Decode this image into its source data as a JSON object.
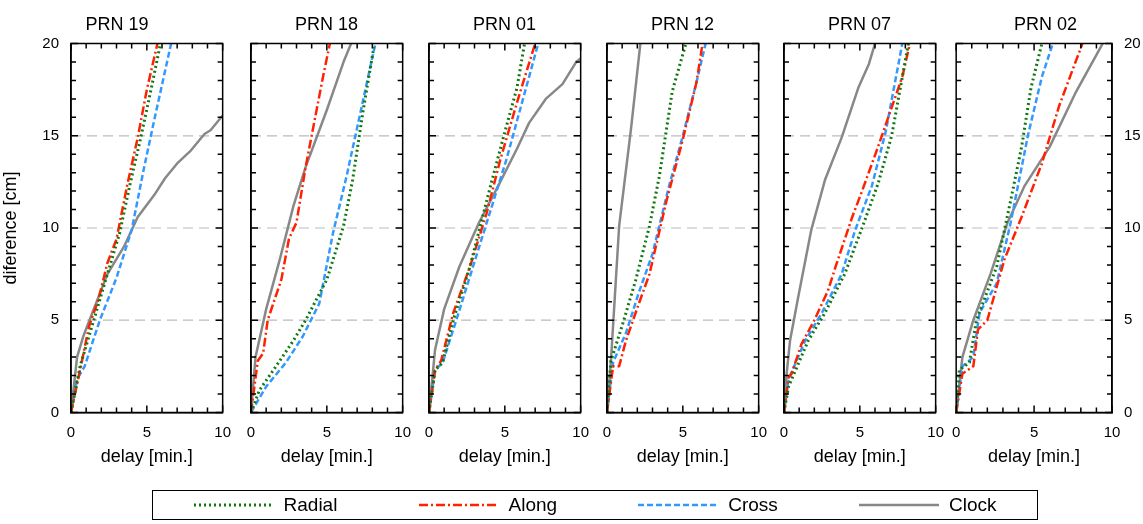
{
  "chart_data": [
    {
      "type": "line",
      "title": "PRN 19",
      "xlabel": "delay [min.]",
      "ylabel": "diference [cm]",
      "legend": "bottom",
      "grid": "y",
      "xlim": [
        0,
        10
      ],
      "xticks": [
        0,
        {
          "value": 1,
          "label": null
        },
        {
          "value": 2,
          "label": null
        },
        {
          "value": 3,
          "label": null
        },
        {
          "value": 4,
          "label": null
        },
        5,
        {
          "value": 6,
          "label": null
        },
        {
          "value": 7,
          "label": null
        },
        {
          "value": 8,
          "label": null
        },
        {
          "value": 9,
          "label": null
        },
        10
      ],
      "ylim": [
        0,
        20
      ],
      "yticks": [
        0,
        {
          "value": 1,
          "label": null
        },
        {
          "value": 2,
          "label": null
        },
        {
          "value": 3,
          "label": null
        },
        {
          "value": 4,
          "label": null
        },
        5,
        {
          "value": 6,
          "label": null
        },
        {
          "value": 7,
          "label": null
        },
        {
          "value": 8,
          "label": null
        },
        {
          "value": 9,
          "label": null
        },
        10,
        {
          "value": 11,
          "label": null
        },
        {
          "value": 12,
          "label": null
        },
        {
          "value": 13,
          "label": null
        },
        {
          "value": 14,
          "label": null
        },
        15,
        {
          "value": 16,
          "label": null
        },
        {
          "value": 17,
          "label": null
        },
        {
          "value": 18,
          "label": null
        },
        {
          "value": 19,
          "label": null
        },
        20
      ],
      "series": [
        {
          "name": "Radial",
          "color": "#117711",
          "line_style": "dotted",
          "x": [
            0,
            0.6,
            1.5,
            2.4,
            3.2,
            3.9,
            4.6,
            5.3,
            5.9
          ],
          "values": [
            0,
            2.5,
            5,
            7.5,
            9.7,
            12.4,
            14.9,
            17.6,
            20
          ]
        },
        {
          "name": "Along",
          "color": "#ff2200",
          "line_style": "dashdot",
          "x": [
            0,
            0.7,
            1.2,
            1.8,
            2.4,
            3.0,
            3.7,
            4.4,
            5.0,
            5.7
          ],
          "values": [
            0,
            2.7,
            4.7,
            6.1,
            8.1,
            9.4,
            12.3,
            14.9,
            17.5,
            20
          ]
        },
        {
          "name": "Cross",
          "color": "#3399ff",
          "line_style": "dashed",
          "x": [
            0,
            0.4,
            0.9,
            1.9,
            3.0,
            4.0,
            4.8,
            5.5,
            6.6
          ],
          "values": [
            0,
            1.8,
            2.5,
            5,
            7.3,
            9.9,
            13.2,
            15.9,
            20
          ]
        },
        {
          "name": "Clock",
          "color": "#888888",
          "line_style": "solid",
          "x": [
            0,
            0.4,
            0.8,
            1.5,
            2.4,
            3.5,
            4.4,
            5.5,
            6.2,
            7.0,
            7.9,
            8.8,
            9.2,
            10
          ],
          "values": [
            0,
            3.0,
            4.1,
            5.6,
            7.5,
            9,
            10.6,
            11.8,
            12.7,
            13.5,
            14.2,
            15.1,
            15.3,
            16.1
          ]
        }
      ]
    },
    {
      "type": "line",
      "title": "PRN 18",
      "xlabel": "delay [min.]",
      "grid": "y",
      "tick_labels": "x",
      "xlim": [
        0,
        10
      ],
      "xticks": [
        0,
        {
          "value": 1,
          "label": null
        },
        {
          "value": 2,
          "label": null
        },
        {
          "value": 3,
          "label": null
        },
        {
          "value": 4,
          "label": null
        },
        5,
        {
          "value": 6,
          "label": null
        },
        {
          "value": 7,
          "label": null
        },
        {
          "value": 8,
          "label": null
        },
        {
          "value": 9,
          "label": null
        },
        10
      ],
      "ylim": [
        0,
        20
      ],
      "yticks": [
        0,
        {
          "value": 1,
          "label": null
        },
        {
          "value": 2,
          "label": null
        },
        {
          "value": 3,
          "label": null
        },
        {
          "value": 4,
          "label": null
        },
        5,
        {
          "value": 6,
          "label": null
        },
        {
          "value": 7,
          "label": null
        },
        {
          "value": 8,
          "label": null
        },
        {
          "value": 9,
          "label": null
        },
        10,
        {
          "value": 11,
          "label": null
        },
        {
          "value": 12,
          "label": null
        },
        {
          "value": 13,
          "label": null
        },
        {
          "value": 14,
          "label": null
        },
        15,
        {
          "value": 16,
          "label": null
        },
        {
          "value": 17,
          "label": null
        },
        {
          "value": 18,
          "label": null
        },
        {
          "value": 19,
          "label": null
        },
        20
      ],
      "series": [
        {
          "color": "#117711",
          "line_style": "dotted",
          "x": [
            0,
            0.55,
            1.65,
            2.8,
            3.6,
            5.0,
            6.1,
            6.7,
            7.4,
            8.1
          ],
          "values": [
            0,
            1.2,
            2.5,
            3.9,
            5,
            7.2,
            10.1,
            12.6,
            16.4,
            19.8
          ]
        },
        {
          "color": "#ff2200",
          "line_style": "dashdot",
          "x": [
            0,
            0.45,
            0.8,
            1.1,
            2.0,
            2.5,
            3.0,
            3.6,
            4.7,
            5.2
          ],
          "values": [
            0,
            2.8,
            3.2,
            5,
            7.2,
            9.4,
            10.3,
            13.3,
            18,
            20
          ]
        },
        {
          "color": "#3399ff",
          "line_style": "dashed",
          "x": [
            0,
            1.0,
            2.3,
            3.4,
            4.5,
            5.4,
            6.3,
            7.2,
            8.2
          ],
          "values": [
            0,
            1.4,
            2.7,
            4.1,
            5.9,
            9.7,
            12.8,
            16.2,
            20
          ]
        },
        {
          "color": "#888888",
          "line_style": "solid",
          "x": [
            0,
            0.3,
            1.0,
            1.9,
            2.8,
            3.6,
            5.0,
            6.1,
            6.6
          ],
          "values": [
            0,
            3,
            5.6,
            8.3,
            11.2,
            13.3,
            16.4,
            19,
            20
          ]
        }
      ]
    },
    {
      "type": "line",
      "title": "PRN 01",
      "xlabel": "delay [min.]",
      "grid": "y",
      "tick_labels": "x",
      "xlim": [
        0,
        10
      ],
      "xticks": [
        0,
        {
          "value": 1,
          "label": null
        },
        {
          "value": 2,
          "label": null
        },
        {
          "value": 3,
          "label": null
        },
        {
          "value": 4,
          "label": null
        },
        5,
        {
          "value": 6,
          "label": null
        },
        {
          "value": 7,
          "label": null
        },
        {
          "value": 8,
          "label": null
        },
        {
          "value": 9,
          "label": null
        },
        10
      ],
      "ylim": [
        0,
        20
      ],
      "yticks": [
        0,
        {
          "value": 1,
          "label": null
        },
        {
          "value": 2,
          "label": null
        },
        {
          "value": 3,
          "label": null
        },
        {
          "value": 4,
          "label": null
        },
        5,
        {
          "value": 6,
          "label": null
        },
        {
          "value": 7,
          "label": null
        },
        {
          "value": 8,
          "label": null
        },
        {
          "value": 9,
          "label": null
        },
        10,
        {
          "value": 11,
          "label": null
        },
        {
          "value": 12,
          "label": null
        },
        {
          "value": 13,
          "label": null
        },
        {
          "value": 14,
          "label": null
        },
        15,
        {
          "value": 16,
          "label": null
        },
        {
          "value": 17,
          "label": null
        },
        {
          "value": 18,
          "label": null
        },
        {
          "value": 19,
          "label": null
        },
        20
      ],
      "series": [
        {
          "color": "#117711",
          "line_style": "dotted",
          "x": [
            0,
            0.4,
            0.9,
            1.6,
            2.7,
            4.0,
            4.9,
            5.8,
            6.3
          ],
          "values": [
            0,
            2.3,
            2.7,
            5,
            7.9,
            12.1,
            14.9,
            17.6,
            20
          ]
        },
        {
          "color": "#ff2200",
          "line_style": "dashdot",
          "x": [
            0,
            0.4,
            0.8,
            1.6,
            2.7,
            3.8,
            4.7,
            5.8,
            7.0
          ],
          "values": [
            0,
            2.3,
            2.8,
            5.4,
            7.9,
            10.8,
            13.7,
            16.8,
            20
          ]
        },
        {
          "color": "#3399ff",
          "line_style": "dashed",
          "x": [
            0,
            0.4,
            0.9,
            1.8,
            2.9,
            4.0,
            5.1,
            6.2,
            7.2
          ],
          "values": [
            0,
            2.3,
            2.7,
            5,
            7.9,
            10.8,
            13.7,
            17,
            20
          ]
        },
        {
          "color": "#888888",
          "line_style": "solid",
          "x": [
            0,
            0.4,
            1.0,
            2.0,
            3.3,
            4.7,
            5.8,
            6.6,
            7.7,
            8.8,
            9.7,
            10
          ],
          "values": [
            0,
            3.4,
            5.6,
            7.9,
            10.3,
            12.5,
            14.3,
            15.7,
            17,
            17.8,
            19,
            19.2
          ]
        }
      ]
    },
    {
      "type": "line",
      "title": "PRN 12",
      "xlabel": "delay [min.]",
      "grid": "y",
      "tick_labels": "x",
      "xlim": [
        0,
        10
      ],
      "xticks": [
        0,
        {
          "value": 1,
          "label": null
        },
        {
          "value": 2,
          "label": null
        },
        {
          "value": 3,
          "label": null
        },
        {
          "value": 4,
          "label": null
        },
        5,
        {
          "value": 6,
          "label": null
        },
        {
          "value": 7,
          "label": null
        },
        {
          "value": 8,
          "label": null
        },
        {
          "value": 9,
          "label": null
        },
        10
      ],
      "ylim": [
        0,
        20
      ],
      "yticks": [
        0,
        {
          "value": 1,
          "label": null
        },
        {
          "value": 2,
          "label": null
        },
        {
          "value": 3,
          "label": null
        },
        {
          "value": 4,
          "label": null
        },
        5,
        {
          "value": 6,
          "label": null
        },
        {
          "value": 7,
          "label": null
        },
        {
          "value": 8,
          "label": null
        },
        {
          "value": 9,
          "label": null
        },
        10,
        {
          "value": 11,
          "label": null
        },
        {
          "value": 12,
          "label": null
        },
        {
          "value": 13,
          "label": null
        },
        {
          "value": 14,
          "label": null
        },
        15,
        {
          "value": 16,
          "label": null
        },
        {
          "value": 17,
          "label": null
        },
        {
          "value": 18,
          "label": null
        },
        {
          "value": 19,
          "label": null
        },
        20
      ],
      "series": [
        {
          "color": "#117711",
          "line_style": "dotted",
          "x": [
            0,
            0.26,
            1.0,
            1.9,
            2.8,
            3.45,
            4.3,
            5.2
          ],
          "values": [
            0,
            2.8,
            4.7,
            7.2,
            10.1,
            12.8,
            17.4,
            20
          ]
        },
        {
          "color": "#ff2200",
          "line_style": "dashdot",
          "x": [
            0,
            0.4,
            0.8,
            1.25,
            2.1,
            2.8,
            3.9,
            5.0,
            5.9,
            6.3
          ],
          "values": [
            0,
            2.5,
            2.5,
            3.9,
            5.9,
            7.5,
            11.4,
            14.8,
            17.9,
            20
          ]
        },
        {
          "color": "#3399ff",
          "line_style": "dashed",
          "x": [
            0,
            0.4,
            1.25,
            2.1,
            3.0,
            4.1,
            5.0,
            5.9,
            6.5
          ],
          "values": [
            0,
            2.7,
            4.3,
            6.5,
            8.6,
            12.3,
            15,
            17.9,
            20
          ]
        },
        {
          "color": "#888888",
          "line_style": "solid",
          "x": [
            0,
            0.26,
            0.8,
            1.6,
            2.2
          ],
          "values": [
            0,
            2.8,
            10.1,
            15.5,
            20
          ]
        }
      ]
    },
    {
      "type": "line",
      "title": "PRN 07",
      "xlabel": "delay [min.]",
      "grid": "y",
      "tick_labels": "x",
      "xlim": [
        0,
        10
      ],
      "xticks": [
        0,
        {
          "value": 1,
          "label": null
        },
        {
          "value": 2,
          "label": null
        },
        {
          "value": 3,
          "label": null
        },
        {
          "value": 4,
          "label": null
        },
        5,
        {
          "value": 6,
          "label": null
        },
        {
          "value": 7,
          "label": null
        },
        {
          "value": 8,
          "label": null
        },
        {
          "value": 9,
          "label": null
        },
        10
      ],
      "ylim": [
        0,
        20
      ],
      "yticks": [
        0,
        {
          "value": 1,
          "label": null
        },
        {
          "value": 2,
          "label": null
        },
        {
          "value": 3,
          "label": null
        },
        {
          "value": 4,
          "label": null
        },
        5,
        {
          "value": 6,
          "label": null
        },
        {
          "value": 7,
          "label": null
        },
        {
          "value": 8,
          "label": null
        },
        {
          "value": 9,
          "label": null
        },
        10,
        {
          "value": 11,
          "label": null
        },
        {
          "value": 12,
          "label": null
        },
        {
          "value": 13,
          "label": null
        },
        {
          "value": 14,
          "label": null
        },
        15,
        {
          "value": 16,
          "label": null
        },
        {
          "value": 17,
          "label": null
        },
        {
          "value": 18,
          "label": null
        },
        {
          "value": 19,
          "label": null
        },
        20
      ],
      "series": [
        {
          "color": "#117711",
          "line_style": "dotted",
          "x": [
            0,
            0.3,
            1.6,
            2.7,
            4.0,
            5.1,
            6.2,
            7.1,
            8.2
          ],
          "values": [
            0,
            1.4,
            3.9,
            5.4,
            7.5,
            9.9,
            12.4,
            15,
            20
          ]
        },
        {
          "color": "#ff2200",
          "line_style": "dashdot",
          "x": [
            0,
            0.3,
            0.5,
            1.15,
            2.0,
            2.9,
            3.4,
            4.5,
            5.1,
            6.2,
            7.8,
            8.3
          ],
          "values": [
            0,
            1.9,
            2.1,
            3.7,
            5,
            6.6,
            7.9,
            10.6,
            11.9,
            14.4,
            18.2,
            20
          ]
        },
        {
          "color": "#3399ff",
          "line_style": "dashed",
          "x": [
            0,
            0.3,
            1.4,
            2.5,
            3.8,
            4.7,
            5.8,
            6.7,
            7.8
          ],
          "values": [
            0,
            1.8,
            3.9,
            5.4,
            7.5,
            9.9,
            12.3,
            15.2,
            20
          ]
        },
        {
          "color": "#888888",
          "line_style": "solid",
          "x": [
            0,
            0.15,
            0.4,
            0.9,
            1.8,
            2.7,
            3.8,
            4.9,
            5.6,
            6.0
          ],
          "values": [
            0,
            1.9,
            3.9,
            6.1,
            9.9,
            12.6,
            14.9,
            17.6,
            18.9,
            20
          ]
        }
      ]
    },
    {
      "type": "line",
      "title": "PRN 02",
      "xlabel": "delay [min.]",
      "grid": "y",
      "xlim": [
        0,
        10
      ],
      "xticks": [
        0,
        {
          "value": 1,
          "label": null
        },
        {
          "value": 2,
          "label": null
        },
        {
          "value": 3,
          "label": null
        },
        {
          "value": 4,
          "label": null
        },
        5,
        {
          "value": 6,
          "label": null
        },
        {
          "value": 7,
          "label": null
        },
        {
          "value": 8,
          "label": null
        },
        {
          "value": 9,
          "label": null
        },
        10
      ],
      "y2lim": [
        0,
        20
      ],
      "y2ticks": [
        0,
        {
          "value": 1,
          "label": null
        },
        {
          "value": 2,
          "label": null
        },
        {
          "value": 3,
          "label": null
        },
        {
          "value": 4,
          "label": null
        },
        5,
        {
          "value": 6,
          "label": null
        },
        {
          "value": 7,
          "label": null
        },
        {
          "value": 8,
          "label": null
        },
        {
          "value": 9,
          "label": null
        },
        10,
        {
          "value": 11,
          "label": null
        },
        {
          "value": 12,
          "label": null
        },
        {
          "value": 13,
          "label": null
        },
        {
          "value": 14,
          "label": null
        },
        15,
        {
          "value": 16,
          "label": null
        },
        {
          "value": 17,
          "label": null
        },
        {
          "value": 18,
          "label": null
        },
        {
          "value": 19,
          "label": null
        },
        20
      ],
      "series": [
        {
          "color": "#117711",
          "line_style": "dotted",
          "axis": "y2",
          "x": [
            0,
            0.2,
            0.85,
            1.3,
            2.6,
            3.5,
            4.2,
            4.8,
            5.5
          ],
          "values": [
            0,
            2.3,
            2.7,
            5,
            7.9,
            11.5,
            14.4,
            17.6,
            20
          ]
        },
        {
          "color": "#ff2200",
          "line_style": "dashdot",
          "axis": "y2",
          "x": [
            0,
            0.4,
            1.1,
            1.4,
            2.0,
            3.1,
            4.2,
            5.5,
            6.6,
            8.1
          ],
          "values": [
            0,
            2.1,
            2.5,
            4.5,
            5,
            8.3,
            10.6,
            13.5,
            16.6,
            20
          ]
        },
        {
          "color": "#3399ff",
          "line_style": "dashed",
          "axis": "y2",
          "x": [
            0,
            0.4,
            1.1,
            1.5,
            2.6,
            3.5,
            4.6,
            5.5,
            6.2
          ],
          "values": [
            0,
            2.5,
            3.0,
            5.4,
            7.0,
            10.3,
            15,
            18.2,
            20
          ]
        },
        {
          "color": "#888888",
          "line_style": "solid",
          "axis": "y2",
          "x": [
            0,
            0.4,
            1.1,
            2.2,
            3.3,
            4.4,
            6.0,
            7.7,
            9.4
          ],
          "values": [
            0,
            3,
            5,
            7.5,
            10.3,
            12.3,
            14.4,
            17.4,
            20
          ]
        }
      ]
    }
  ]
}
